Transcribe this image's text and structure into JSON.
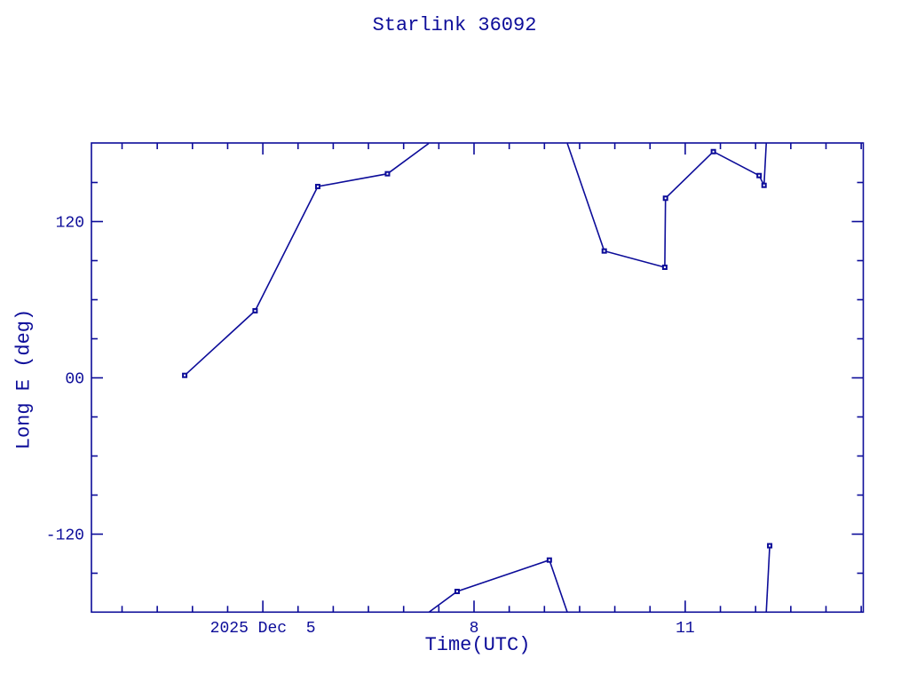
{
  "colors": {
    "plot": "#0c0c99",
    "background": "#ffffff"
  },
  "chart_data": {
    "type": "line",
    "title": "Starlink 36092",
    "xlabel": "Time(UTC)",
    "ylabel": "Long E (deg)",
    "x_unit": "decimal day of December 2025, UTC",
    "xlim": [
      2.57,
      13.53
    ],
    "ylim": [
      -180,
      180
    ],
    "grid": false,
    "legend": "none",
    "wrap_at_degrees": 180,
    "x_minor_step_days": 0.5,
    "y_minor_step_deg": 30,
    "x_major_ticks": [
      {
        "value": 5,
        "label": "2025 Dec  5"
      },
      {
        "value": 8,
        "label": "8"
      },
      {
        "value": 11,
        "label": "11"
      }
    ],
    "y_major_ticks": [
      {
        "value": 120,
        "label": "120"
      },
      {
        "value": 0,
        "label": "00"
      },
      {
        "value": -120,
        "label": "-120"
      }
    ],
    "series": [
      {
        "name": "Long E",
        "marker": "filled-square",
        "points": [
          {
            "t": 3.89,
            "lon": 1.9
          },
          {
            "t": 4.89,
            "lon": 51.5
          },
          {
            "t": 5.78,
            "lon": 146.9
          },
          {
            "t": 6.77,
            "lon": 156.7
          },
          {
            "t": 7.76,
            "lon": -164.0
          },
          {
            "t": 9.07,
            "lon": -139.9
          },
          {
            "t": 9.85,
            "lon": 97.4
          },
          {
            "t": 10.71,
            "lon": 84.9
          },
          {
            "t": 10.72,
            "lon": 137.9
          },
          {
            "t": 11.4,
            "lon": 173.7
          },
          {
            "t": 12.05,
            "lon": 155.3
          },
          {
            "t": 12.12,
            "lon": 147.8
          },
          {
            "t": 12.2,
            "lon": -128.9
          }
        ]
      }
    ]
  }
}
